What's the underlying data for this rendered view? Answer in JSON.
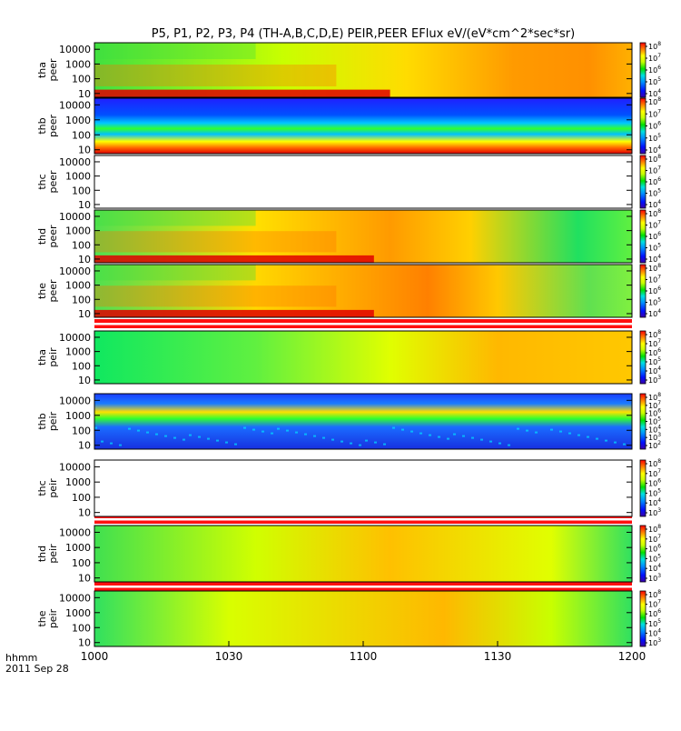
{
  "chart_data": {
    "type": "heatmap",
    "title": "P5, P1, P2, P3, P4 (TH-A,B,C,D,E) PEIR,PEER EFlux eV/(eV*cm^2*sec*sr)",
    "x_tick_labels": [
      "1000",
      "1030",
      "1100",
      "1130",
      "1200"
    ],
    "x_label": "hhmm",
    "date_label": "2011 Sep 28",
    "y_scale": "log",
    "y_tick_labels": [
      "10",
      "100",
      "1000",
      "10000"
    ],
    "panels": [
      {
        "id": "tha_peer",
        "label_top": "tha",
        "label_bottom": "peer",
        "colorbar_exponents": [
          "8",
          "7",
          "6",
          "5",
          "4"
        ],
        "pattern": "a",
        "flag_bar_above": false
      },
      {
        "id": "thb_peer",
        "label_top": "thb",
        "label_bottom": "peer",
        "colorbar_exponents": [
          "8",
          "7",
          "6",
          "5",
          "4"
        ],
        "pattern": "b",
        "flag_bar_above": false
      },
      {
        "id": "thc_peer",
        "label_top": "thc",
        "label_bottom": "peer",
        "colorbar_exponents": [
          "8",
          "7",
          "6",
          "5",
          "4"
        ],
        "pattern": "empty",
        "flag_bar_above": false
      },
      {
        "id": "thd_peer",
        "label_top": "thd",
        "label_bottom": "peer",
        "colorbar_exponents": [
          "8",
          "7",
          "6",
          "5",
          "4"
        ],
        "pattern": "d",
        "flag_bar_above": false
      },
      {
        "id": "the_peer",
        "label_top": "the",
        "label_bottom": "peer",
        "colorbar_exponents": [
          "8",
          "7",
          "6",
          "5",
          "4"
        ],
        "pattern": "e",
        "flag_bar_above": false
      },
      {
        "id": "tha_peir",
        "label_top": "tha",
        "label_bottom": "peir",
        "colorbar_exponents": [
          "8",
          "7",
          "6",
          "5",
          "4",
          "3"
        ],
        "pattern": "ia",
        "flag_bar_above": true
      },
      {
        "id": "thb_peir",
        "label_top": "thb",
        "label_bottom": "peir",
        "colorbar_exponents": [
          "8",
          "7",
          "6",
          "5",
          "4",
          "3",
          "2"
        ],
        "pattern": "ib",
        "flag_bar_above": false
      },
      {
        "id": "thc_peir",
        "label_top": "thc",
        "label_bottom": "peir",
        "colorbar_exponents": [
          "8",
          "7",
          "6",
          "5",
          "4",
          "3"
        ],
        "pattern": "empty",
        "flag_bar_above": false
      },
      {
        "id": "thd_peir",
        "label_top": "thd",
        "label_bottom": "peir",
        "colorbar_exponents": [
          "8",
          "7",
          "6",
          "5",
          "4",
          "3"
        ],
        "pattern": "ic",
        "flag_bar_above": true
      },
      {
        "id": "the_peir",
        "label_top": "the",
        "label_bottom": "peir",
        "colorbar_exponents": [
          "8",
          "7",
          "6",
          "5",
          "4",
          "3"
        ],
        "pattern": "ie",
        "flag_bar_above": true
      }
    ]
  }
}
